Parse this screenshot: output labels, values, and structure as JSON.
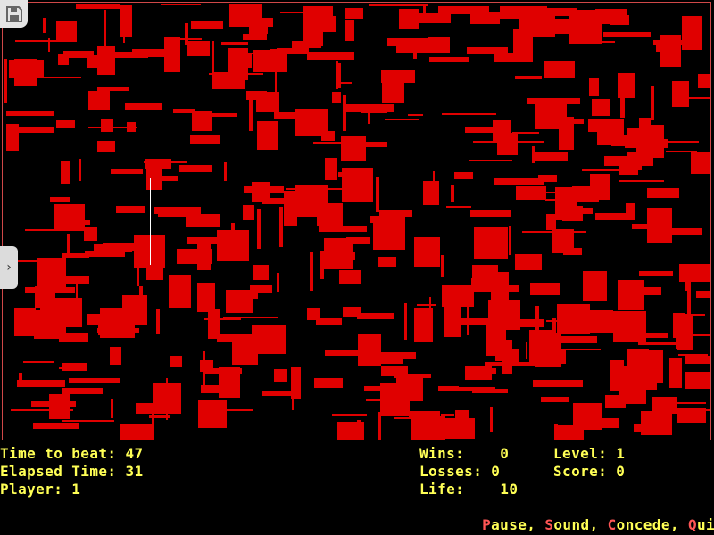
{
  "colors": {
    "block": "#e00000",
    "hud_text": "#ffff55",
    "hotkey": "#ff5555",
    "border": "#d04848",
    "player": "#ffffff"
  },
  "icons": {
    "save": "floppy-disk-icon",
    "side_tab": "chevron-right-icon"
  },
  "side_tab_glyph": "›",
  "hud": {
    "time_to_beat": "Time to beat: 47",
    "elapsed_time": "Elapsed Time: 31",
    "player": "Player: 1",
    "wins": "Wins:    0",
    "losses": "Losses: 0",
    "life": "Life:    10",
    "level": "Level: 1",
    "score": "Score: 0"
  },
  "menu": [
    {
      "key": "P",
      "rest": "ause",
      "sep": ", "
    },
    {
      "key": "S",
      "rest": "ound",
      "sep": ", "
    },
    {
      "key": "C",
      "rest": "oncede",
      "sep": ", "
    },
    {
      "key": "Q",
      "rest": "uit",
      "sep": ""
    }
  ]
}
